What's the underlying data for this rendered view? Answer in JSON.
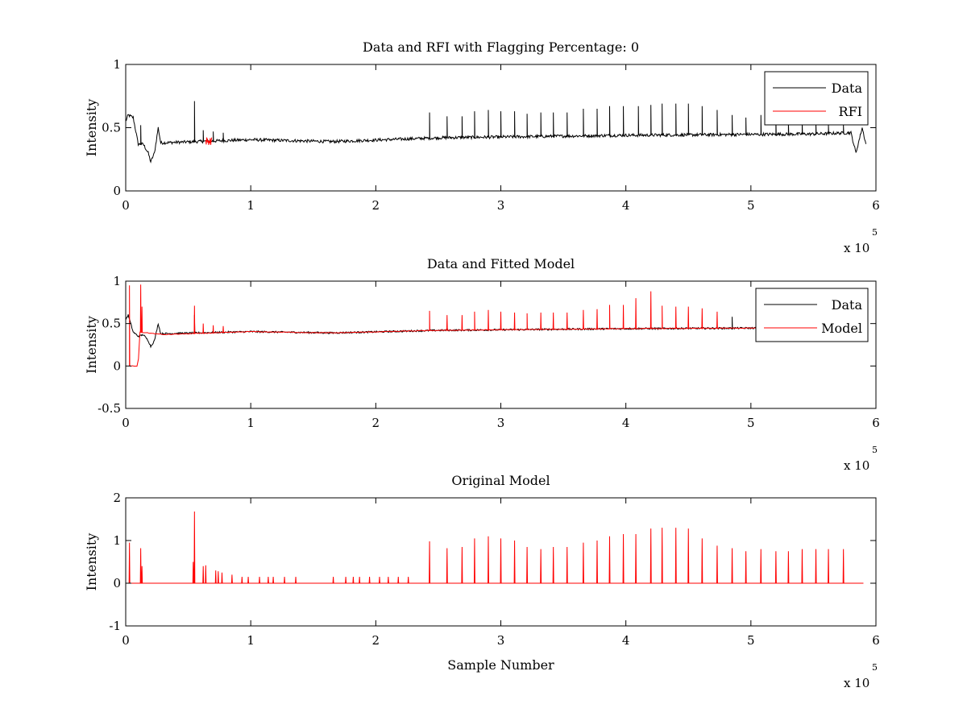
{
  "colors": {
    "data": "#000000",
    "model": "#ff0000",
    "axes": "#000000",
    "background": "#ffffff"
  },
  "chart_data": [
    {
      "type": "line",
      "title": "Data and RFI with Flagging Percentage: 0",
      "xlabel": "",
      "ylabel": "Intensity",
      "xlim": [
        0,
        600000
      ],
      "ylim": [
        0,
        1
      ],
      "xticks": [
        0,
        1,
        2,
        3,
        4,
        5,
        6
      ],
      "yticks": [
        "0",
        "0.5",
        "1"
      ],
      "x_multiplier": {
        "base": "x 10",
        "exponent": "5"
      },
      "legend_position": "top-right",
      "baseline": [
        [
          0,
          0.55
        ],
        [
          2000,
          0.6
        ],
        [
          6000,
          0.58
        ],
        [
          10000,
          0.37
        ],
        [
          14000,
          0.37
        ],
        [
          18000,
          0.3
        ],
        [
          20000,
          0.23
        ],
        [
          23000,
          0.3
        ],
        [
          26000,
          0.5
        ],
        [
          28000,
          0.38
        ],
        [
          100000,
          0.405
        ],
        [
          165000,
          0.39
        ],
        [
          250000,
          0.42
        ],
        [
          400000,
          0.44
        ],
        [
          550000,
          0.45
        ],
        [
          580000,
          0.46
        ],
        [
          584000,
          0.3
        ],
        [
          589000,
          0.5
        ],
        [
          592000,
          0.37
        ]
      ],
      "noise": 0.012,
      "series": [
        {
          "name": "Data",
          "color": "#000000",
          "role": "data",
          "spikes": [
            [
              12000,
              0.52
            ],
            [
              55000,
              0.71
            ],
            [
              62000,
              0.48
            ],
            [
              70000,
              0.47
            ],
            [
              78000,
              0.46
            ],
            [
              243000,
              0.62
            ],
            [
              257000,
              0.59
            ],
            [
              269000,
              0.59
            ],
            [
              279000,
              0.63
            ],
            [
              290000,
              0.64
            ],
            [
              300000,
              0.63
            ],
            [
              311000,
              0.63
            ],
            [
              321000,
              0.61
            ],
            [
              332000,
              0.62
            ],
            [
              342000,
              0.62
            ],
            [
              353000,
              0.62
            ],
            [
              366000,
              0.65
            ],
            [
              377000,
              0.65
            ],
            [
              387000,
              0.67
            ],
            [
              398000,
              0.67
            ],
            [
              410000,
              0.67
            ],
            [
              420000,
              0.68
            ],
            [
              429000,
              0.69
            ],
            [
              440000,
              0.69
            ],
            [
              450000,
              0.69
            ],
            [
              461000,
              0.67
            ],
            [
              473000,
              0.64
            ],
            [
              485000,
              0.6
            ],
            [
              496000,
              0.58
            ],
            [
              508000,
              0.6
            ],
            [
              520000,
              0.56
            ],
            [
              530000,
              0.55
            ],
            [
              541000,
              0.55
            ],
            [
              552000,
              0.53
            ],
            [
              562000,
              0.52
            ],
            [
              574000,
              0.52
            ]
          ]
        },
        {
          "name": "RFI",
          "color": "#ff0000",
          "role": "flags",
          "segments": [
            [
              64000,
              0.43
            ],
            [
              69000,
              0.47
            ]
          ]
        }
      ]
    },
    {
      "type": "line",
      "title": "Data and Fitted Model",
      "xlabel": "",
      "ylabel": "Intensity",
      "xlim": [
        0,
        600000
      ],
      "ylim": [
        -0.5,
        1
      ],
      "xticks": [
        0,
        1,
        2,
        3,
        4,
        5,
        6
      ],
      "yticks": [
        "-0.5",
        "0",
        "0.5",
        "1"
      ],
      "x_multiplier": {
        "base": "x 10",
        "exponent": "5"
      },
      "legend_position": "top-right",
      "baseline": [
        [
          0,
          0.55
        ],
        [
          2000,
          0.6
        ],
        [
          6000,
          0.4
        ],
        [
          10000,
          0.35
        ],
        [
          14000,
          0.37
        ],
        [
          18000,
          0.3
        ],
        [
          20000,
          0.23
        ],
        [
          23000,
          0.3
        ],
        [
          26000,
          0.5
        ],
        [
          28000,
          0.38
        ],
        [
          100000,
          0.405
        ],
        [
          165000,
          0.39
        ],
        [
          250000,
          0.42
        ],
        [
          400000,
          0.44
        ],
        [
          550000,
          0.45
        ],
        [
          590000,
          0.46
        ]
      ],
      "noise": 0.01,
      "series": [
        {
          "name": "Data",
          "color": "#000000",
          "role": "data",
          "spikes": [
            [
              55000,
              0.6
            ],
            [
              485000,
              0.58
            ]
          ]
        },
        {
          "name": "Model",
          "color": "#ff0000",
          "role": "model",
          "baseline": [
            [
              3000,
              0
            ],
            [
              10000,
              0
            ],
            [
              11000,
              0.4
            ],
            [
              30000,
              0.37
            ],
            [
              100000,
              0.405
            ],
            [
              165000,
              0.39
            ],
            [
              250000,
              0.42
            ],
            [
              400000,
              0.44
            ],
            [
              550000,
              0.45
            ],
            [
              590000,
              0.46
            ]
          ],
          "spikes": [
            [
              3000,
              0.95
            ],
            [
              12000,
              0.96
            ],
            [
              13000,
              0.7
            ],
            [
              55000,
              0.71
            ],
            [
              62000,
              0.5
            ],
            [
              70000,
              0.48
            ],
            [
              78000,
              0.47
            ],
            [
              243000,
              0.65
            ],
            [
              257000,
              0.6
            ],
            [
              269000,
              0.6
            ],
            [
              279000,
              0.64
            ],
            [
              290000,
              0.66
            ],
            [
              300000,
              0.64
            ],
            [
              311000,
              0.63
            ],
            [
              321000,
              0.62
            ],
            [
              332000,
              0.63
            ],
            [
              342000,
              0.63
            ],
            [
              353000,
              0.63
            ],
            [
              366000,
              0.66
            ],
            [
              377000,
              0.67
            ],
            [
              387000,
              0.72
            ],
            [
              398000,
              0.72
            ],
            [
              408000,
              0.8
            ],
            [
              420000,
              0.88
            ],
            [
              429000,
              0.71
            ],
            [
              440000,
              0.7
            ],
            [
              450000,
              0.7
            ],
            [
              461000,
              0.68
            ],
            [
              473000,
              0.64
            ]
          ]
        }
      ]
    },
    {
      "type": "line",
      "title": "Original Model",
      "xlabel": "Sample Number",
      "ylabel": "Intensity",
      "xlim": [
        0,
        600000
      ],
      "ylim": [
        -1,
        2
      ],
      "xticks": [
        0,
        1,
        2,
        3,
        4,
        5,
        6
      ],
      "yticks": [
        "-1",
        "0",
        "1",
        "2"
      ],
      "x_multiplier": {
        "base": "x 10",
        "exponent": "5"
      },
      "series": [
        {
          "name": "",
          "color": "#ff0000",
          "role": "model",
          "baseline_value": 0,
          "x_range": [
            0,
            590000
          ],
          "spikes": [
            [
              3000,
              0.95
            ],
            [
              12000,
              0.82
            ],
            [
              13000,
              0.4
            ],
            [
              54000,
              0.5
            ],
            [
              55000,
              1.68
            ],
            [
              62000,
              0.4
            ],
            [
              64000,
              0.42
            ],
            [
              72000,
              0.3
            ],
            [
              74000,
              0.28
            ],
            [
              77000,
              0.25
            ],
            [
              85000,
              0.2
            ],
            [
              93000,
              0.15
            ],
            [
              98000,
              0.15
            ],
            [
              107000,
              0.15
            ],
            [
              114000,
              0.15
            ],
            [
              118000,
              0.15
            ],
            [
              127000,
              0.15
            ],
            [
              136000,
              0.15
            ],
            [
              166000,
              0.15
            ],
            [
              176000,
              0.15
            ],
            [
              182000,
              0.15
            ],
            [
              187000,
              0.15
            ],
            [
              195000,
              0.15
            ],
            [
              203000,
              0.15
            ],
            [
              210000,
              0.15
            ],
            [
              218000,
              0.15
            ],
            [
              226000,
              0.15
            ],
            [
              243000,
              0.98
            ],
            [
              257000,
              0.82
            ],
            [
              269000,
              0.85
            ],
            [
              279000,
              1.05
            ],
            [
              290000,
              1.1
            ],
            [
              300000,
              1.05
            ],
            [
              311000,
              1.0
            ],
            [
              321000,
              0.85
            ],
            [
              332000,
              0.8
            ],
            [
              342000,
              0.85
            ],
            [
              353000,
              0.85
            ],
            [
              366000,
              0.95
            ],
            [
              377000,
              1.0
            ],
            [
              387000,
              1.1
            ],
            [
              398000,
              1.15
            ],
            [
              408000,
              1.15
            ],
            [
              420000,
              1.28
            ],
            [
              429000,
              1.3
            ],
            [
              440000,
              1.3
            ],
            [
              450000,
              1.28
            ],
            [
              461000,
              1.05
            ],
            [
              473000,
              0.88
            ],
            [
              485000,
              0.82
            ],
            [
              496000,
              0.75
            ],
            [
              508000,
              0.8
            ],
            [
              520000,
              0.75
            ],
            [
              530000,
              0.75
            ],
            [
              541000,
              0.8
            ],
            [
              552000,
              0.8
            ],
            [
              562000,
              0.8
            ],
            [
              574000,
              0.8
            ]
          ]
        }
      ]
    }
  ]
}
